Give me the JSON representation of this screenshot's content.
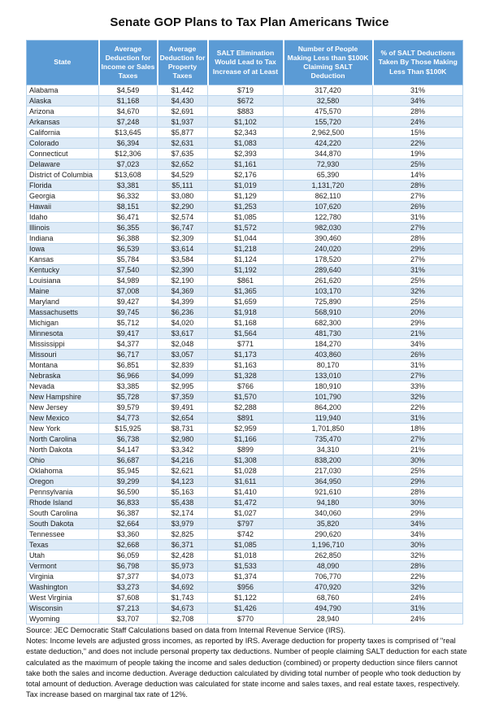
{
  "title": "Senate GOP Plans to Tax Plan Americans Twice",
  "chart_data": {
    "type": "table",
    "title": "Senate GOP Plans to Tax Plan Americans Twice",
    "columns": [
      "State",
      "Average Deduction for Income or Sales Taxes",
      "Average Deduction for Property Taxes",
      "SALT Elimination Would Lead to Tax Increase of at Least",
      "Number of People Making Less than $100K Claiming SALT Deduction",
      "% of SALT Deductions Taken By Those Making Less Than $100K"
    ],
    "rows": [
      [
        "Alabama",
        "$4,549",
        "$1,442",
        "$719",
        "317,420",
        "31%"
      ],
      [
        "Alaska",
        "$1,168",
        "$4,430",
        "$672",
        "32,580",
        "34%"
      ],
      [
        "Arizona",
        "$4,670",
        "$2,691",
        "$883",
        "475,570",
        "28%"
      ],
      [
        "Arkansas",
        "$7,248",
        "$1,937",
        "$1,102",
        "155,720",
        "24%"
      ],
      [
        "California",
        "$13,645",
        "$5,877",
        "$2,343",
        "2,962,500",
        "15%"
      ],
      [
        "Colorado",
        "$6,394",
        "$2,631",
        "$1,083",
        "424,220",
        "22%"
      ],
      [
        "Connecticut",
        "$12,306",
        "$7,635",
        "$2,393",
        "344,870",
        "19%"
      ],
      [
        "Delaware",
        "$7,023",
        "$2,652",
        "$1,161",
        "72,930",
        "25%"
      ],
      [
        "District of Columbia",
        "$13,608",
        "$4,529",
        "$2,176",
        "65,390",
        "14%"
      ],
      [
        "Florida",
        "$3,381",
        "$5,111",
        "$1,019",
        "1,131,720",
        "28%"
      ],
      [
        "Georgia",
        "$6,332",
        "$3,080",
        "$1,129",
        "862,110",
        "27%"
      ],
      [
        "Hawaii",
        "$8,151",
        "$2,290",
        "$1,253",
        "107,620",
        "26%"
      ],
      [
        "Idaho",
        "$6,471",
        "$2,574",
        "$1,085",
        "122,780",
        "31%"
      ],
      [
        "Illinois",
        "$6,355",
        "$6,747",
        "$1,572",
        "982,030",
        "27%"
      ],
      [
        "Indiana",
        "$6,388",
        "$2,309",
        "$1,044",
        "390,460",
        "28%"
      ],
      [
        "Iowa",
        "$6,539",
        "$3,614",
        "$1,218",
        "240,020",
        "29%"
      ],
      [
        "Kansas",
        "$5,784",
        "$3,584",
        "$1,124",
        "178,520",
        "27%"
      ],
      [
        "Kentucky",
        "$7,540",
        "$2,390",
        "$1,192",
        "289,640",
        "31%"
      ],
      [
        "Louisiana",
        "$4,989",
        "$2,190",
        "$861",
        "261,620",
        "25%"
      ],
      [
        "Maine",
        "$7,008",
        "$4,369",
        "$1,365",
        "103,170",
        "32%"
      ],
      [
        "Maryland",
        "$9,427",
        "$4,399",
        "$1,659",
        "725,890",
        "25%"
      ],
      [
        "Massachusetts",
        "$9,745",
        "$6,236",
        "$1,918",
        "568,910",
        "20%"
      ],
      [
        "Michigan",
        "$5,712",
        "$4,020",
        "$1,168",
        "682,300",
        "29%"
      ],
      [
        "Minnesota",
        "$9,417",
        "$3,617",
        "$1,564",
        "481,730",
        "21%"
      ],
      [
        "Mississippi",
        "$4,377",
        "$2,048",
        "$771",
        "184,270",
        "34%"
      ],
      [
        "Missouri",
        "$6,717",
        "$3,057",
        "$1,173",
        "403,860",
        "26%"
      ],
      [
        "Montana",
        "$6,851",
        "$2,839",
        "$1,163",
        "80,170",
        "31%"
      ],
      [
        "Nebraska",
        "$6,966",
        "$4,099",
        "$1,328",
        "133,010",
        "27%"
      ],
      [
        "Nevada",
        "$3,385",
        "$2,995",
        "$766",
        "180,910",
        "33%"
      ],
      [
        "New Hampshire",
        "$5,728",
        "$7,359",
        "$1,570",
        "101,790",
        "32%"
      ],
      [
        "New Jersey",
        "$9,579",
        "$9,491",
        "$2,288",
        "864,200",
        "22%"
      ],
      [
        "New Mexico",
        "$4,773",
        "$2,654",
        "$891",
        "119,940",
        "31%"
      ],
      [
        "New York",
        "$15,925",
        "$8,731",
        "$2,959",
        "1,701,850",
        "18%"
      ],
      [
        "North Carolina",
        "$6,738",
        "$2,980",
        "$1,166",
        "735,470",
        "27%"
      ],
      [
        "North Dakota",
        "$4,147",
        "$3,342",
        "$899",
        "34,310",
        "21%"
      ],
      [
        "Ohio",
        "$6,687",
        "$4,216",
        "$1,308",
        "838,200",
        "30%"
      ],
      [
        "Oklahoma",
        "$5,945",
        "$2,621",
        "$1,028",
        "217,030",
        "25%"
      ],
      [
        "Oregon",
        "$9,299",
        "$4,123",
        "$1,611",
        "364,950",
        "29%"
      ],
      [
        "Pennsylvania",
        "$6,590",
        "$5,163",
        "$1,410",
        "921,610",
        "28%"
      ],
      [
        "Rhode Island",
        "$6,833",
        "$5,438",
        "$1,472",
        "94,180",
        "30%"
      ],
      [
        "South Carolina",
        "$6,387",
        "$2,174",
        "$1,027",
        "340,060",
        "29%"
      ],
      [
        "South Dakota",
        "$2,664",
        "$3,979",
        "$797",
        "35,820",
        "34%"
      ],
      [
        "Tennessee",
        "$3,360",
        "$2,825",
        "$742",
        "290,620",
        "34%"
      ],
      [
        "Texas",
        "$2,668",
        "$6,371",
        "$1,085",
        "1,196,710",
        "30%"
      ],
      [
        "Utah",
        "$6,059",
        "$2,428",
        "$1,018",
        "262,850",
        "32%"
      ],
      [
        "Vermont",
        "$6,798",
        "$5,973",
        "$1,533",
        "48,090",
        "28%"
      ],
      [
        "Virginia",
        "$7,377",
        "$4,073",
        "$1,374",
        "706,770",
        "22%"
      ],
      [
        "Washington",
        "$3,273",
        "$4,692",
        "$956",
        "470,920",
        "32%"
      ],
      [
        "West Virginia",
        "$7,608",
        "$1,743",
        "$1,122",
        "68,760",
        "24%"
      ],
      [
        "Wisconsin",
        "$7,213",
        "$4,673",
        "$1,426",
        "494,790",
        "31%"
      ],
      [
        "Wyoming",
        "$3,707",
        "$2,708",
        "$770",
        "28,940",
        "24%"
      ]
    ],
    "layout": {
      "header_bg": "#5B9BD5",
      "header_text": "#FFFFFF",
      "stripe_bg": "#DEEBF7",
      "border_color": "#BDD7EE",
      "first_column_align": "left",
      "value_columns_align": "center"
    }
  },
  "footer": {
    "source": "Source: JEC Democratic Staff Calculations based on data from Internal Revenue Service (IRS).",
    "notes": "Notes: Income levels are adjusted gross incomes, as reported by IRS. Average deduction for property taxes is comprised of \"real estate deduction,\" and does not include personal property tax deductions. Number of people claiming SALT deduction for each state calculated as the maximum of people taking the income and sales deduction (combined) or property deduction since filers cannot take both the sales and income deduction. Average deduction calculated by dividing total number of people who took deduction by total amount of deduction. Average deduction was calculated for state income and sales taxes, and real estate taxes, respectively. Tax increase based on marginal tax rate of 12%."
  }
}
